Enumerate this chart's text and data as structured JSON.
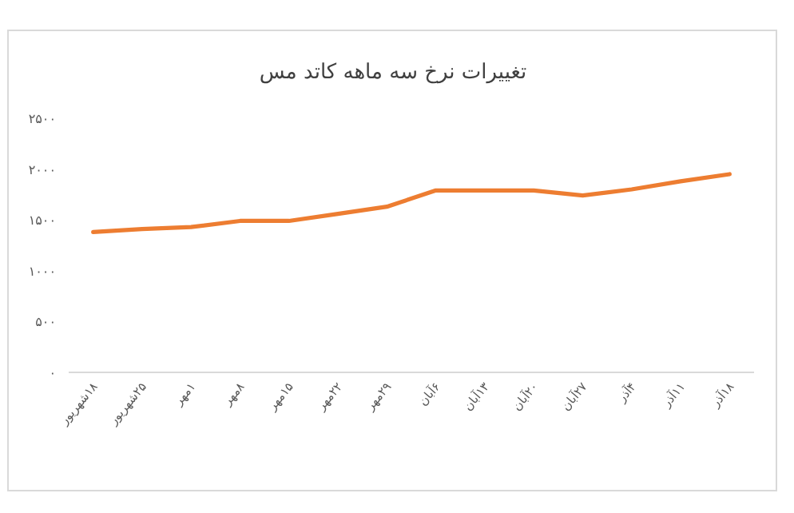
{
  "chart_data": {
    "type": "line",
    "title": "تغییرات نرخ سه ماهه کاتد مس",
    "categories": [
      "۱۸شهریور",
      "۲۵شهریور",
      "۱مهر",
      "۸مهر",
      "۱۵مهر",
      "۲۲مهر",
      "۲۹مهر",
      "۶آبان",
      "۱۳آبان",
      "۲۰آبان",
      "۲۷آبان",
      "۴آذر",
      "۱۱آذر",
      "۱۸آذر"
    ],
    "series": [
      {
        "color": "#ed7d31",
        "values": [
          1380,
          1410,
          1430,
          1490,
          1490,
          1560,
          1630,
          1790,
          1790,
          1790,
          1740,
          1800,
          1880,
          1950
        ]
      }
    ],
    "ylim": [
      0,
      2500
    ],
    "yticks": [
      {
        "value": 0,
        "label": "۰"
      },
      {
        "value": 500,
        "label": "۵۰۰"
      },
      {
        "value": 1000,
        "label": "۱۰۰۰"
      },
      {
        "value": 1500,
        "label": "۱۵۰۰"
      },
      {
        "value": 2000,
        "label": "۲۰۰۰"
      },
      {
        "value": 2500,
        "label": "۲۵۰۰"
      }
    ],
    "grid": false,
    "marker": "none",
    "line_style": "solid"
  }
}
